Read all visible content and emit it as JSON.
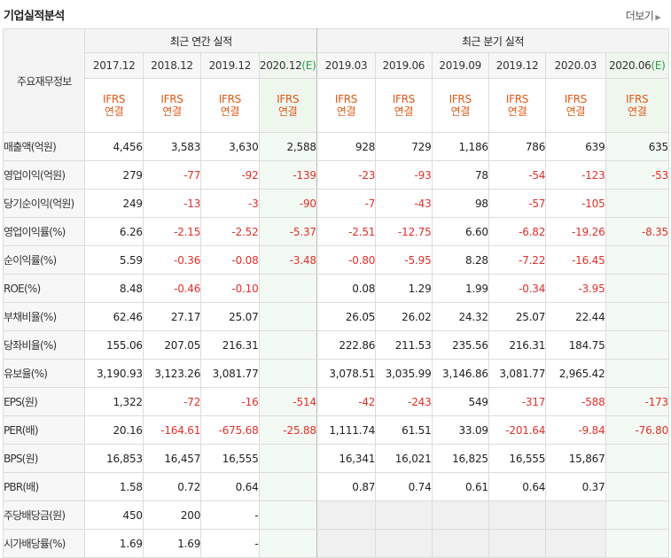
{
  "header": {
    "title": "기업실적분석",
    "more_label": "더보기"
  },
  "table": {
    "row_label_header": "주요재무정보",
    "annual_group": "최근 연간 실적",
    "quarterly_group": "최근 분기 실적",
    "annual_periods": [
      "2017.12",
      "2018.12",
      "2019.12",
      "2020.12"
    ],
    "quarterly_periods": [
      "2019.03",
      "2019.06",
      "2019.09",
      "2019.12",
      "2020.03",
      "2020.06"
    ],
    "estimate_mark": "(E)",
    "accounting_top": "IFRS",
    "accounting_bottom": "연결",
    "rows": [
      {
        "label": "매출액(억원)",
        "values": [
          "4,456",
          "3,583",
          "3,630",
          "2,588",
          "928",
          "729",
          "1,186",
          "786",
          "639",
          "635"
        ]
      },
      {
        "label": "영업이익(억원)",
        "values": [
          "279",
          "-77",
          "-92",
          "-139",
          "-23",
          "-93",
          "78",
          "-54",
          "-123",
          "-53"
        ]
      },
      {
        "label": "당기순이익(억원)",
        "values": [
          "249",
          "-13",
          "-3",
          "-90",
          "-7",
          "-43",
          "98",
          "-57",
          "-105",
          ""
        ]
      },
      {
        "label": "영업이익률(%)",
        "values": [
          "6.26",
          "-2.15",
          "-2.52",
          "-5.37",
          "-2.51",
          "-12.75",
          "6.60",
          "-6.82",
          "-19.26",
          "-8.35"
        ]
      },
      {
        "label": "순이익률(%)",
        "values": [
          "5.59",
          "-0.36",
          "-0.08",
          "-3.48",
          "-0.80",
          "-5.95",
          "8.28",
          "-7.22",
          "-16.45",
          ""
        ]
      },
      {
        "label": "ROE(%)",
        "values": [
          "8.48",
          "-0.46",
          "-0.10",
          "",
          "0.08",
          "1.29",
          "1.99",
          "-0.34",
          "-3.95",
          ""
        ]
      },
      {
        "label": "부채비율(%)",
        "values": [
          "62.46",
          "27.17",
          "25.07",
          "",
          "26.05",
          "26.02",
          "24.32",
          "25.07",
          "22.44",
          ""
        ]
      },
      {
        "label": "당좌비율(%)",
        "values": [
          "155.06",
          "207.05",
          "216.31",
          "",
          "222.86",
          "211.53",
          "235.56",
          "216.31",
          "184.75",
          ""
        ]
      },
      {
        "label": "유보율(%)",
        "values": [
          "3,190.93",
          "3,123.26",
          "3,081.77",
          "",
          "3,078.51",
          "3,035.99",
          "3,146.86",
          "3,081.77",
          "2,965.42",
          ""
        ]
      },
      {
        "label": "EPS(원)",
        "values": [
          "1,322",
          "-72",
          "-16",
          "-514",
          "-42",
          "-243",
          "549",
          "-317",
          "-588",
          "-173"
        ]
      },
      {
        "label": "PER(배)",
        "values": [
          "20.16",
          "-164.61",
          "-675.68",
          "-25.88",
          "1,111.74",
          "61.51",
          "33.09",
          "-201.64",
          "-9.84",
          "-76.80"
        ]
      },
      {
        "label": "BPS(원)",
        "values": [
          "16,853",
          "16,457",
          "16,555",
          "",
          "16,341",
          "16,021",
          "16,825",
          "16,555",
          "15,867",
          ""
        ]
      },
      {
        "label": "PBR(배)",
        "values": [
          "1.58",
          "0.72",
          "0.64",
          "",
          "0.87",
          "0.74",
          "0.61",
          "0.64",
          "0.37",
          ""
        ]
      },
      {
        "label": "주당배당금(원)",
        "values": [
          "450",
          "200",
          "-",
          "",
          "",
          "",
          "",
          "",
          "",
          ""
        ]
      },
      {
        "label": "시가배당률(%)",
        "values": [
          "1.69",
          "1.69",
          "-",
          "",
          "",
          "",
          "",
          "",
          "",
          ""
        ]
      }
    ]
  },
  "colors": {
    "negative": "#e0302a",
    "accounting": "#e05816",
    "estimate": "#2f9a48"
  }
}
